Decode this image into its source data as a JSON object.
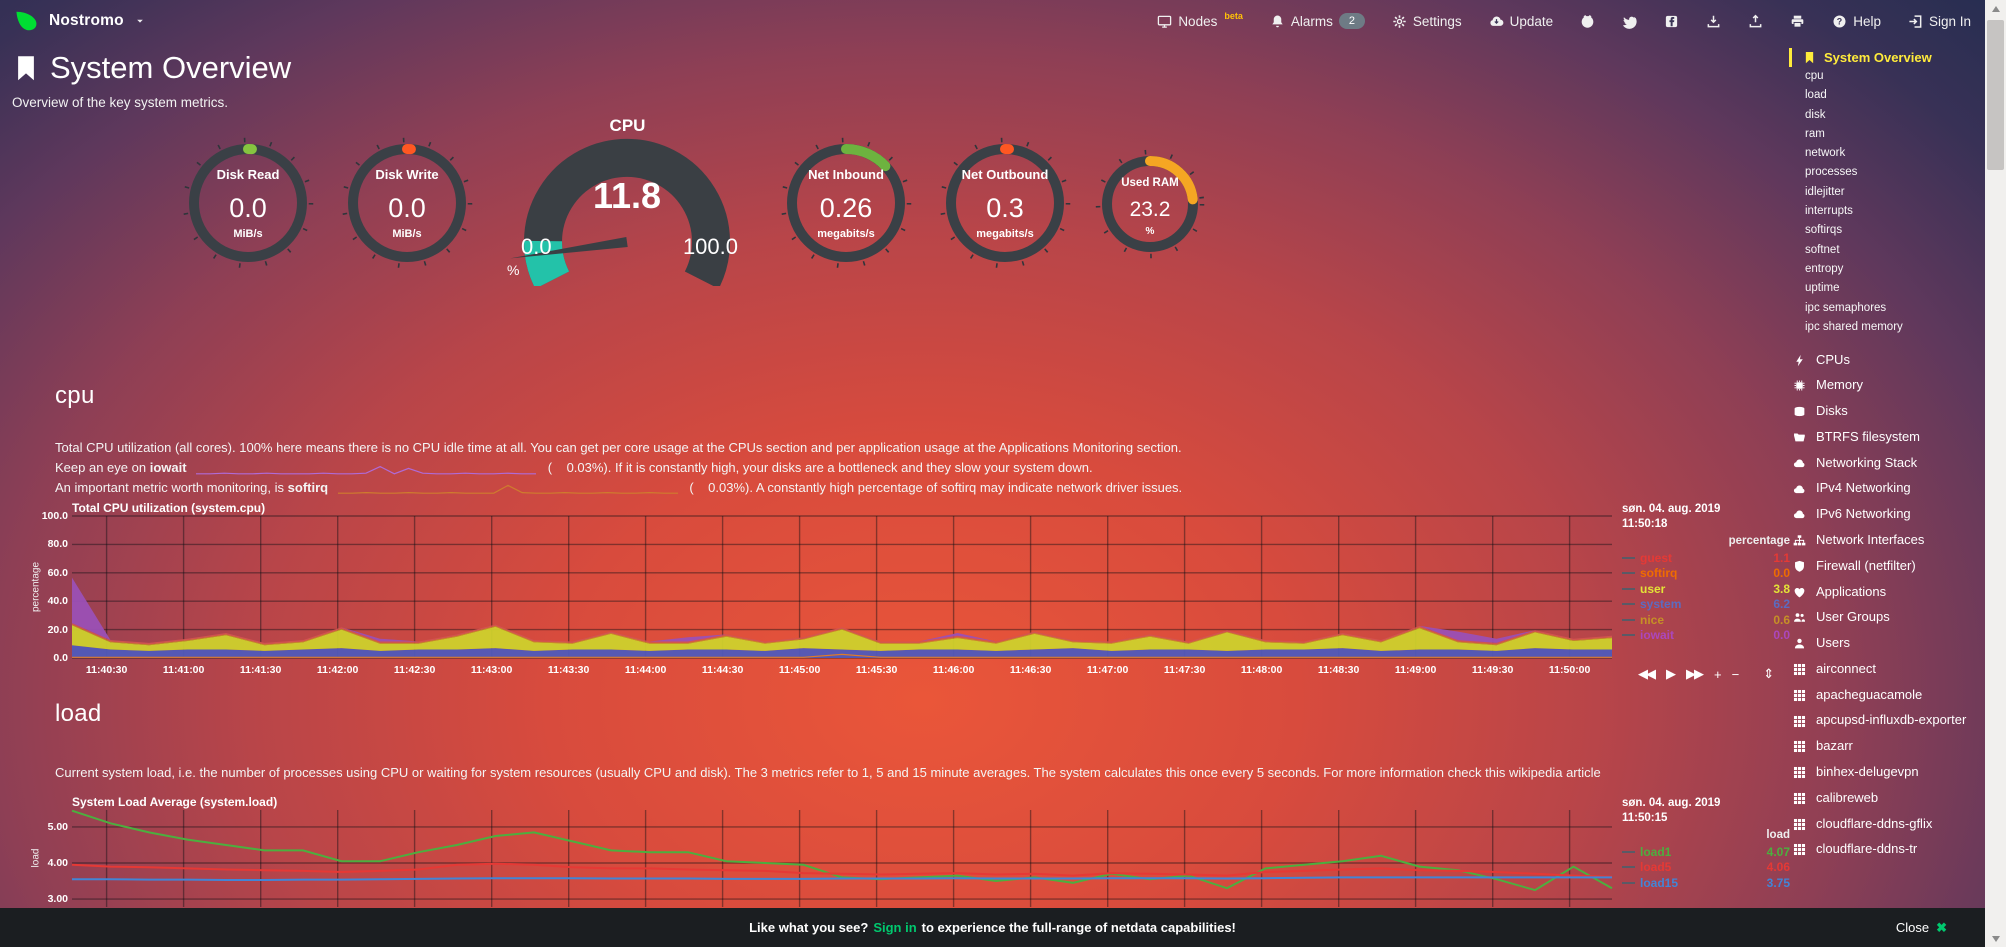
{
  "navbar": {
    "hostname": "Nostromo",
    "items": [
      {
        "icon": "monitor-icon",
        "label": "Nodes",
        "sup": "beta"
      },
      {
        "icon": "bell-icon",
        "label": "Alarms",
        "badge": "2"
      },
      {
        "icon": "gear-icon",
        "label": "Settings"
      },
      {
        "icon": "cloud-update-icon",
        "label": "Update"
      },
      {
        "icon": "github-icon"
      },
      {
        "icon": "twitter-icon"
      },
      {
        "icon": "facebook-icon"
      },
      {
        "icon": "download-icon"
      },
      {
        "icon": "upload-icon"
      },
      {
        "icon": "print-icon"
      },
      {
        "icon": "help-icon",
        "label": "Help"
      },
      {
        "icon": "signin-icon",
        "label": "Sign In"
      }
    ]
  },
  "header": {
    "title": "System Overview",
    "subtitle": "Overview of the key system metrics."
  },
  "gauges": {
    "disk_read": {
      "title": "Disk Read",
      "value": "0.0",
      "unit": "MiB/s",
      "color": "#86c440",
      "fraction": 0.004
    },
    "disk_write": {
      "title": "Disk Write",
      "value": "0.0",
      "unit": "MiB/s",
      "color": "#ff5722",
      "fraction": 0.004
    },
    "cpu": {
      "title": "CPU",
      "value": "11.8",
      "min": "0.0",
      "max": "100.0",
      "unit": "%",
      "color": "#23c2a9",
      "fraction": 0.118
    },
    "net_inbound": {
      "title": "Net Inbound",
      "value": "0.26",
      "unit": "megabits/s",
      "color": "#6db33f",
      "fraction": 0.13
    },
    "net_outbound": {
      "title": "Net Outbound",
      "value": "0.3",
      "unit": "megabits/s",
      "color": "#ff5722",
      "fraction": 0.012
    },
    "used_ram": {
      "title": "Used RAM",
      "value": "23.2",
      "unit": "%",
      "color": "#f5a623",
      "fraction": 0.232
    }
  },
  "sections": {
    "cpu": {
      "heading": "cpu",
      "desc": "Total CPU utilization (all cores). 100% here means there is no CPU idle time at all. You can get per core usage at the CPUs section and per application usage at the Applications Monitoring section.",
      "line2_pre": "Keep an eye on",
      "line2_term": "iowait",
      "line2_post": "(    0.03%). If it is constantly high, your disks are a bottleneck and they slow your system down.",
      "line3_pre": "An important metric worth monitoring, is",
      "line3_term": "softirq",
      "line3_post": "(    0.03%). A constantly high percentage of softirq may indicate network driver issues."
    },
    "load": {
      "heading": "load",
      "desc": "Current system load, i.e. the number of processes using CPU or waiting for system resources (usually CPU and disk). The 3 metrics refer to 1, 5 and 15 minute averages. The system calculates this once every 5 seconds. For more information check this wikipedia article"
    }
  },
  "sparklines": {
    "iowait": {
      "color": "#b06ad6",
      "values": [
        0.2,
        0.2,
        0.3,
        0.2,
        0.2,
        0.3,
        0.2,
        0.2,
        0.2,
        0.3,
        0.2,
        0.2,
        0.3,
        1.4,
        0.2,
        1.1,
        0.3,
        0.2,
        0.2,
        0.3,
        0.2,
        0.2,
        0.3,
        0.2,
        0.2
      ]
    },
    "softirq": {
      "color": "#cf7c2e",
      "values": [
        0.3,
        0.3,
        0.4,
        0.3,
        0.3,
        0.4,
        0.3,
        0.3,
        0.4,
        0.3,
        0.3,
        0.3,
        1.6,
        0.4,
        0.3,
        0.3,
        0.4,
        0.3,
        0.3,
        0.4,
        0.3,
        0.3,
        0.4,
        0.3,
        0.3
      ]
    }
  },
  "chart_toolbar": [
    "◀◀",
    "▶",
    "▶▶",
    "+",
    "−",
    "⇕"
  ],
  "chart_data": [
    {
      "id": "cpu",
      "type": "area",
      "title": "Total CPU utilization (system.cpu)",
      "ylabel": "percentage",
      "ylim": [
        0,
        100
      ],
      "yticks": [
        "100.0",
        "80.0",
        "60.0",
        "40.0",
        "20.0",
        "0.0"
      ],
      "x_labels": [
        "11:40:30",
        "11:41:00",
        "11:41:30",
        "11:42:00",
        "11:42:30",
        "11:43:00",
        "11:43:30",
        "11:44:00",
        "11:44:30",
        "11:45:00",
        "11:45:30",
        "11:46:00",
        "11:46:30",
        "11:47:00",
        "11:47:30",
        "11:48:00",
        "11:48:30",
        "11:49:00",
        "11:49:30",
        "11:50:00"
      ],
      "series": [
        {
          "name": "system",
          "color": "#4f5aba",
          "values": [
            9,
            6,
            5,
            6,
            6,
            5,
            6,
            7,
            5,
            6,
            6,
            7,
            5,
            6,
            6,
            5,
            6,
            6,
            5,
            7,
            6,
            5,
            6,
            6,
            5,
            6,
            7,
            5,
            6,
            6,
            5,
            6,
            6,
            7,
            5,
            6,
            6,
            5,
            7,
            6,
            6
          ]
        },
        {
          "name": "user",
          "color": "#cdd12c",
          "values": [
            14,
            5,
            4,
            6,
            10,
            4,
            5,
            13,
            5,
            4,
            9,
            15,
            6,
            4,
            11,
            5,
            4,
            9,
            5,
            6,
            14,
            5,
            4,
            8,
            5,
            11,
            4,
            5,
            9,
            4,
            13,
            5,
            4,
            9,
            6,
            15,
            5,
            4,
            11,
            6,
            8
          ]
        },
        {
          "name": "nice",
          "color": "#c69026",
          "values": [
            0.6,
            0.6,
            0.6,
            0.6,
            0.6,
            0.6,
            0.6,
            0.6,
            0.6,
            0.6,
            0.6,
            0.6,
            0.6,
            0.6,
            0.6,
            0.6,
            0.6,
            0.6,
            0.6,
            0.6,
            0.6,
            0.6,
            0.6,
            0.6,
            0.6,
            0.6,
            0.6,
            0.6,
            0.6,
            0.6,
            0.6,
            0.6,
            0.6,
            0.6,
            0.6,
            0.6,
            0.6,
            0.6,
            0.6,
            0.6,
            0.6
          ]
        },
        {
          "name": "guest",
          "color": "#d35450",
          "values": [
            1,
            1,
            1,
            1,
            1,
            1,
            1,
            1,
            1,
            1,
            1,
            1,
            1,
            1,
            1,
            1,
            1,
            1,
            1,
            1,
            1,
            1,
            1,
            1,
            1,
            1,
            1,
            1,
            1,
            1,
            1,
            1,
            1,
            1,
            1,
            1,
            1,
            1,
            1,
            1,
            1
          ]
        },
        {
          "name": "iowait",
          "color": "#9b50b5",
          "values": [
            32,
            0,
            0,
            0,
            0,
            0,
            0,
            0,
            2,
            0,
            0,
            0,
            0,
            0,
            0,
            0,
            3,
            0,
            0,
            0,
            0,
            0,
            0,
            2,
            0,
            0,
            0,
            0,
            0,
            0,
            0,
            0,
            0,
            0,
            0,
            0,
            6,
            3,
            0,
            0,
            0
          ]
        }
      ],
      "line_series": [
        {
          "name": "softirq",
          "color": "#e07b28",
          "values": [
            0.5,
            0.5,
            0.5,
            0.5,
            0.5,
            0.5,
            0.5,
            0.5,
            0.5,
            0.5,
            0.5,
            0.5,
            0.5,
            0.5,
            0.5,
            0.5,
            0.5,
            0.5,
            0.5,
            0.5,
            2.5,
            0.5,
            0.5,
            0.5,
            0.5,
            0.5,
            0.5,
            0.5,
            0.5,
            0.5,
            0.5,
            0.5,
            0.5,
            0.5,
            0.5,
            0.5,
            0.5,
            0.5,
            0.5,
            0.5,
            0.5
          ]
        }
      ],
      "legend": {
        "date": "søn. 04. aug. 2019",
        "time": "11:50:18",
        "units": "percentage",
        "rows": [
          {
            "label": "guest",
            "value": "1.1",
            "color": "#e53935"
          },
          {
            "label": "softirq",
            "value": "0.0",
            "color": "#ef6c00"
          },
          {
            "label": "user",
            "value": "3.8",
            "color": "#e3e337"
          },
          {
            "label": "system",
            "value": "6.2",
            "color": "#5c6bc0"
          },
          {
            "label": "nice",
            "value": "0.6",
            "color": "#c69026"
          },
          {
            "label": "iowait",
            "value": "0.0",
            "color": "#ab47bc"
          }
        ]
      }
    },
    {
      "id": "load",
      "type": "line",
      "title": "System Load Average (system.load)",
      "ylabel": "load",
      "ylim": [
        2.78,
        5.47
      ],
      "gridlines": [
        5,
        4,
        3
      ],
      "yticks": [
        "5.00",
        "4.00",
        "3.00"
      ],
      "series": [
        {
          "name": "load1",
          "color": "#4caf3f",
          "values": [
            5.45,
            5.1,
            4.85,
            4.65,
            4.5,
            4.35,
            4.35,
            4.05,
            4.05,
            4.3,
            4.5,
            4.75,
            4.85,
            4.6,
            4.35,
            4.3,
            4.3,
            4.05,
            4.0,
            3.95,
            3.6,
            3.55,
            3.6,
            3.65,
            3.5,
            3.6,
            3.45,
            3.7,
            3.55,
            3.65,
            3.3,
            3.85,
            3.95,
            4.05,
            4.2,
            3.9,
            3.8,
            3.55,
            3.25,
            3.9,
            3.3
          ]
        },
        {
          "name": "load5",
          "color": "#e53935",
          "values": [
            3.95,
            3.9,
            3.88,
            3.85,
            3.82,
            3.8,
            3.78,
            3.75,
            3.78,
            3.82,
            3.95,
            3.98,
            3.95,
            3.88,
            3.85,
            3.85,
            3.82,
            3.8,
            3.78,
            3.72,
            3.7,
            3.68,
            3.7,
            3.72,
            3.68,
            3.7,
            3.65,
            3.72,
            3.7,
            3.68,
            3.65,
            3.75,
            3.78,
            3.82,
            3.85,
            3.8,
            3.78,
            3.75,
            3.7,
            3.65,
            3.62
          ]
        },
        {
          "name": "load15",
          "color": "#4285d6",
          "values": [
            3.55,
            3.55,
            3.54,
            3.54,
            3.53,
            3.53,
            3.54,
            3.54,
            3.55,
            3.56,
            3.57,
            3.58,
            3.58,
            3.58,
            3.57,
            3.57,
            3.57,
            3.56,
            3.56,
            3.56,
            3.57,
            3.57,
            3.57,
            3.58,
            3.57,
            3.57,
            3.57,
            3.58,
            3.58,
            3.58,
            3.57,
            3.58,
            3.59,
            3.6,
            3.6,
            3.6,
            3.6,
            3.6,
            3.6,
            3.6,
            3.6
          ]
        }
      ],
      "legend": {
        "date": "søn. 04. aug. 2019",
        "time": "11:50:15",
        "units": "load",
        "rows": [
          {
            "label": "load1",
            "value": "4.07",
            "color": "#4caf3f"
          },
          {
            "label": "load5",
            "value": "4.06",
            "color": "#e53935"
          },
          {
            "label": "load15",
            "value": "3.75",
            "color": "#4285d6"
          }
        ]
      }
    }
  ],
  "sidebar": {
    "active": {
      "icon": "bookmark-icon",
      "label": "System Overview"
    },
    "subitems": [
      "cpu",
      "load",
      "disk",
      "ram",
      "network",
      "processes",
      "idlejitter",
      "interrupts",
      "softirqs",
      "softnet",
      "entropy",
      "uptime",
      "ipc semaphores",
      "ipc shared memory"
    ],
    "sections": [
      {
        "icon": "bolt-icon",
        "label": "CPUs"
      },
      {
        "icon": "chip-icon",
        "label": "Memory"
      },
      {
        "icon": "hdd-icon",
        "label": "Disks"
      },
      {
        "icon": "folder-icon",
        "label": "BTRFS filesystem"
      },
      {
        "icon": "cloud-icon",
        "label": "Networking Stack"
      },
      {
        "icon": "cloud-icon",
        "label": "IPv4 Networking"
      },
      {
        "icon": "cloud-icon",
        "label": "IPv6 Networking"
      },
      {
        "icon": "sitemap-icon",
        "label": "Network Interfaces"
      },
      {
        "icon": "shield-icon",
        "label": "Firewall (netfilter)"
      },
      {
        "icon": "heart-icon",
        "label": "Applications"
      },
      {
        "icon": "users-icon",
        "label": "User Groups"
      },
      {
        "icon": "user-icon",
        "label": "Users"
      },
      {
        "icon": "grid-icon",
        "label": "airconnect"
      },
      {
        "icon": "grid-icon",
        "label": "apacheguacamole"
      },
      {
        "icon": "grid-icon",
        "label": "apcupsd-influxdb-exporter"
      },
      {
        "icon": "grid-icon",
        "label": "bazarr"
      },
      {
        "icon": "grid-icon",
        "label": "binhex-delugevpn"
      },
      {
        "icon": "grid-icon",
        "label": "calibreweb"
      },
      {
        "icon": "grid-icon",
        "label": "cloudflare-ddns-gflix"
      },
      {
        "icon": "grid-icon",
        "label": "cloudflare-ddns-tr"
      }
    ]
  },
  "footer": {
    "prefix": "Like what you see?",
    "signin": "Sign in",
    "suffix": "to experience the full-range of netdata capabilities!",
    "close_label": "Close",
    "close_glyph": "✖",
    "accent": "#00c86e"
  }
}
